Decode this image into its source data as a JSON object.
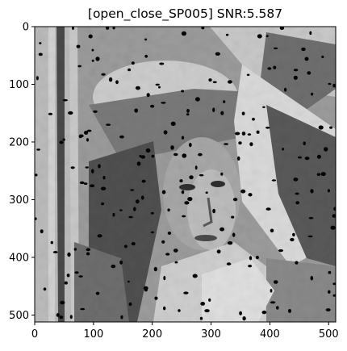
{
  "chart_data": {
    "type": "image",
    "title": "[open_close_SP005] SNR:5.587",
    "xlabel": "",
    "ylabel": "",
    "xlim": [
      0,
      512
    ],
    "ylim": [
      512,
      0
    ],
    "xticks": [
      0,
      100,
      200,
      300,
      400,
      500
    ],
    "yticks": [
      0,
      100,
      200,
      300,
      400,
      500
    ],
    "colormap": "gray",
    "image_description": "Grayscale Lena photograph after morphological open/close filtering, with scattered black salt-and-pepper noise specks"
  }
}
